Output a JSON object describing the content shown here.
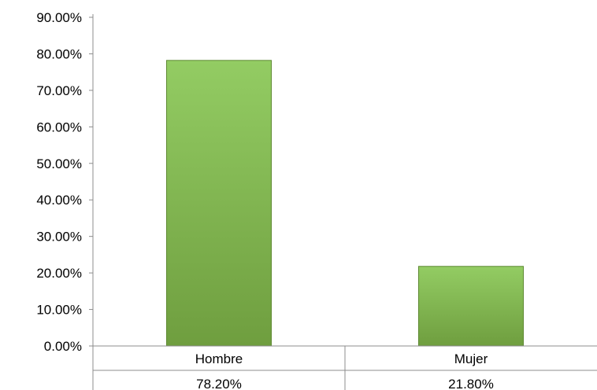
{
  "chart_data": {
    "type": "bar",
    "categories": [
      "Hombre",
      "Mujer"
    ],
    "values": [
      78.2,
      21.8
    ],
    "value_labels": [
      "78.20%",
      "21.80%"
    ],
    "yticks": [
      "0.00%",
      "10.00%",
      "20.00%",
      "30.00%",
      "40.00%",
      "50.00%",
      "60.00%",
      "70.00%",
      "80.00%",
      "90.00%"
    ],
    "ylim": [
      0,
      90
    ],
    "grid": false,
    "legend": "none",
    "data_table": true,
    "colors": {
      "bar_light": "#93cc63",
      "bar_dark": "#6f9e3f",
      "bar_edge": "#5f8a33",
      "axis": "#8c8c8c"
    }
  }
}
